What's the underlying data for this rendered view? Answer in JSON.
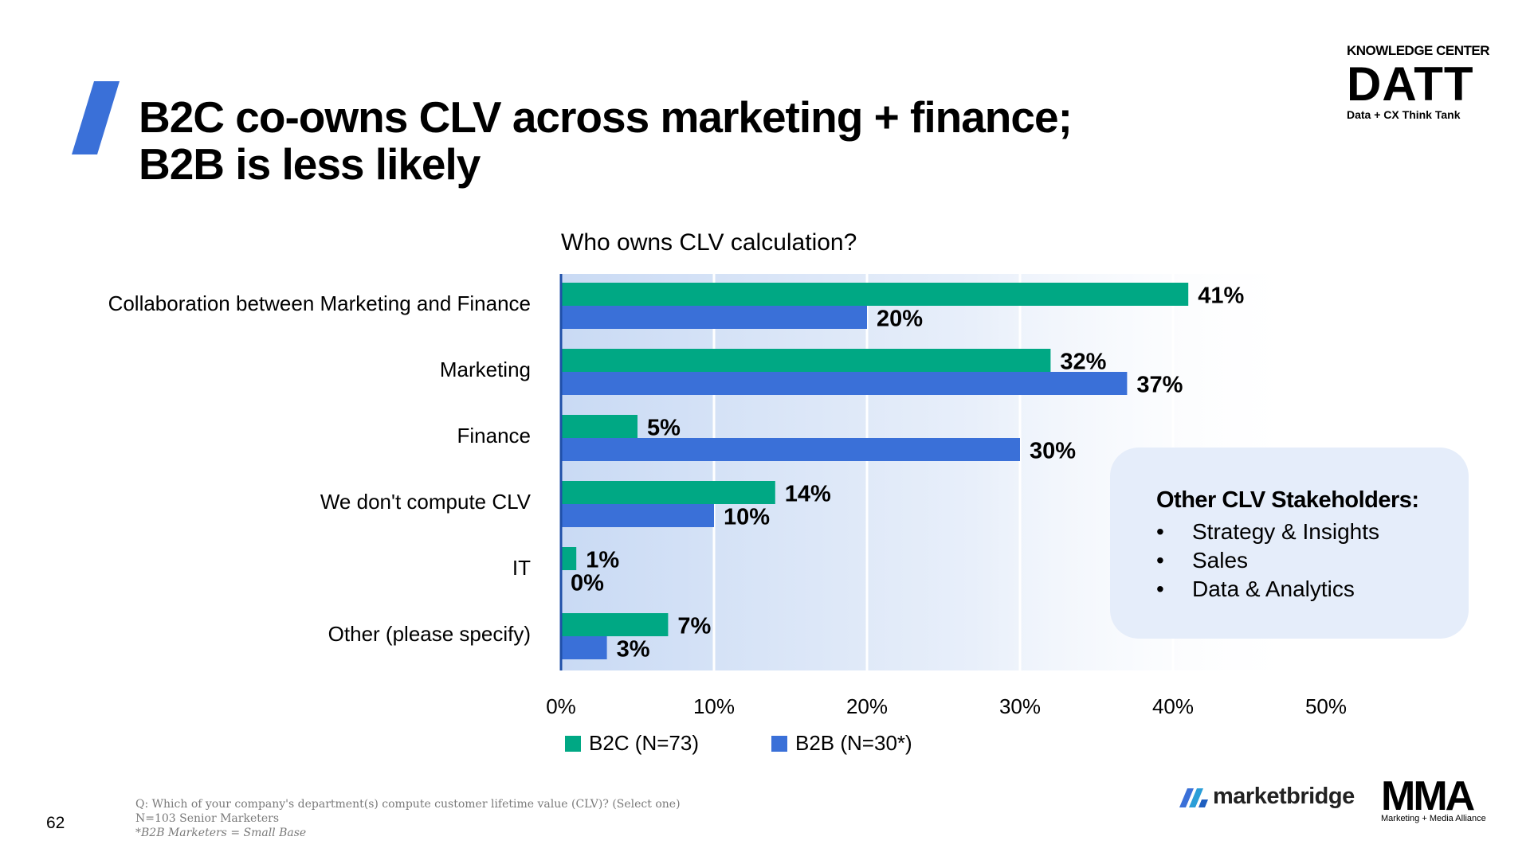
{
  "page": {
    "title_line1": "B2C co-owns CLV across marketing + finance;",
    "title_line2": "B2B is less likely",
    "page_number": "62",
    "brand_color": "#3a70d8"
  },
  "logos": {
    "datt_header": "KNOWLEDGE CENTER",
    "datt_main": "DATT",
    "datt_tagline": "Data + CX Think Tank",
    "marketbridge": "marketbridge",
    "mma": "MMA",
    "mma_tagline": "Marketing + Media Alliance"
  },
  "chart_data": {
    "type": "bar",
    "orientation": "horizontal",
    "title": "Who owns CLV calculation?",
    "categories": [
      "Collaboration between Marketing and Finance",
      "Marketing",
      "Finance",
      "We don't compute CLV",
      "IT",
      "Other (please specify)"
    ],
    "series": [
      {
        "name": "B2C (N=73)",
        "color": "#00a884",
        "values": [
          41,
          32,
          5,
          14,
          1,
          7
        ],
        "labels": [
          "41%",
          "32%",
          "5%",
          "14%",
          "1%",
          "7%"
        ]
      },
      {
        "name": "B2B (N=30*)",
        "color": "#3a70d8",
        "values": [
          20,
          37,
          30,
          10,
          0,
          3
        ],
        "labels": [
          "20%",
          "37%",
          "30%",
          "10%",
          "0%",
          "3%"
        ]
      }
    ],
    "xlim": [
      0,
      50
    ],
    "xticks": [
      0,
      10,
      20,
      30,
      40,
      50
    ],
    "xtick_labels": [
      "0%",
      "10%",
      "20%",
      "30%",
      "40%",
      "50%"
    ],
    "grid": true,
    "legend": "bottom"
  },
  "callout": {
    "heading": "Other CLV Stakeholders:",
    "bullet": "•",
    "items": [
      "Strategy & Insights",
      "Sales",
      "Data & Analytics"
    ]
  },
  "footnote": {
    "question": "Q: Which of your company's department(s) compute customer lifetime value (CLV)? (Select one)",
    "sample": "N=103 Senior Marketers",
    "note": "*B2B Marketers = Small Base"
  }
}
